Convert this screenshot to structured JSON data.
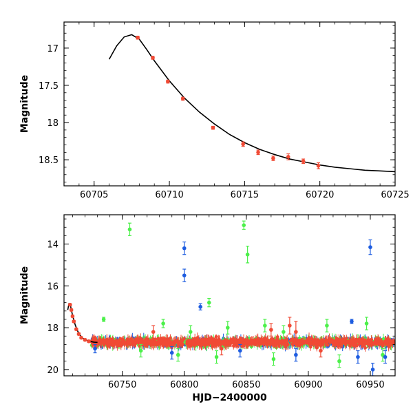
{
  "chart_data": [
    {
      "type": "scatter",
      "panel": "top",
      "xlabel": "",
      "ylabel": "Magnitude",
      "xlim": [
        60703,
        60725
      ],
      "ylim": [
        18.85,
        16.65
      ],
      "y_inverted": true,
      "xticks": [
        60705,
        60710,
        60715,
        60720,
        60725
      ],
      "xtick_labels": [
        "60705",
        "60710",
        "60715",
        "60720",
        "60725"
      ],
      "yticks": [
        17,
        17.5,
        18,
        18.5
      ],
      "ytick_labels": [
        "17",
        "17.5",
        "18",
        "18.5"
      ],
      "series": [
        {
          "name": "red",
          "color": "#f04a35",
          "points": [
            {
              "x": 60707.9,
              "y": 16.86,
              "err": 0.02
            },
            {
              "x": 60708.9,
              "y": 17.13,
              "err": 0.02
            },
            {
              "x": 60709.9,
              "y": 17.45,
              "err": 0.02
            },
            {
              "x": 60710.9,
              "y": 17.68,
              "err": 0.02
            },
            {
              "x": 60712.9,
              "y": 18.07,
              "err": 0.02
            },
            {
              "x": 60714.9,
              "y": 18.29,
              "err": 0.03
            },
            {
              "x": 60715.9,
              "y": 18.4,
              "err": 0.03
            },
            {
              "x": 60716.9,
              "y": 18.48,
              "err": 0.03
            },
            {
              "x": 60717.9,
              "y": 18.46,
              "err": 0.04
            },
            {
              "x": 60718.9,
              "y": 18.52,
              "err": 0.03
            },
            {
              "x": 60719.9,
              "y": 18.58,
              "err": 0.04
            }
          ]
        }
      ],
      "model_curve": {
        "color": "#000000",
        "x": [
          60706.0,
          60706.5,
          60707.0,
          60707.5,
          60708.0,
          60708.5,
          60709.0,
          60710.0,
          60711.0,
          60712.0,
          60713.0,
          60714.0,
          60715.0,
          60716.0,
          60717.0,
          60718.0,
          60719.0,
          60720.0,
          60721.0,
          60722.0,
          60723.0,
          60724.0,
          60725.0
        ],
        "y": [
          17.15,
          16.97,
          16.85,
          16.82,
          16.88,
          17.02,
          17.17,
          17.44,
          17.67,
          17.86,
          18.02,
          18.16,
          18.27,
          18.36,
          18.43,
          18.49,
          18.53,
          18.57,
          18.6,
          18.62,
          18.64,
          18.65,
          18.66
        ]
      }
    },
    {
      "type": "scatter",
      "panel": "bottom",
      "xlabel": "HJD−2400000",
      "ylabel": "Magnitude",
      "xlim": [
        60703,
        60970
      ],
      "ylim": [
        20.3,
        12.6
      ],
      "y_inverted": true,
      "xticks": [
        60750,
        60800,
        60850,
        60900,
        60950
      ],
      "xtick_labels": [
        "60750",
        "60800",
        "60850",
        "60900",
        "60950"
      ],
      "yticks": [
        14,
        16,
        18,
        20
      ],
      "ytick_labels": [
        "14",
        "16",
        "18",
        "20"
      ],
      "dense_band": {
        "x_range": [
          60725,
          60970
        ],
        "y_center": 18.7,
        "y_spread": 0.3
      },
      "series": [
        {
          "name": "green",
          "color": "#4cf04a",
          "points": [
            {
              "x": 60756,
              "y": 13.3,
              "err": 0.3
            },
            {
              "x": 60735,
              "y": 17.6,
              "err": 0.1
            },
            {
              "x": 60783,
              "y": 17.8,
              "err": 0.2
            },
            {
              "x": 60820,
              "y": 16.8,
              "err": 0.2
            },
            {
              "x": 60848,
              "y": 13.1,
              "err": 0.2
            },
            {
              "x": 60851,
              "y": 14.5,
              "err": 0.4
            },
            {
              "x": 60805,
              "y": 18.2,
              "err": 0.3
            },
            {
              "x": 60835,
              "y": 18.0,
              "err": 0.3
            },
            {
              "x": 60865,
              "y": 17.9,
              "err": 0.3
            },
            {
              "x": 60880,
              "y": 18.2,
              "err": 0.3
            },
            {
              "x": 60915,
              "y": 17.9,
              "err": 0.3
            },
            {
              "x": 60947,
              "y": 17.8,
              "err": 0.3
            },
            {
              "x": 60765,
              "y": 19.1,
              "err": 0.3
            },
            {
              "x": 60795,
              "y": 19.3,
              "err": 0.3
            },
            {
              "x": 60826,
              "y": 19.4,
              "err": 0.3
            },
            {
              "x": 60872,
              "y": 19.5,
              "err": 0.3
            },
            {
              "x": 60925,
              "y": 19.6,
              "err": 0.3
            },
            {
              "x": 60960,
              "y": 19.3,
              "err": 0.3
            }
          ]
        },
        {
          "name": "blue",
          "color": "#1d5ce0",
          "points": [
            {
              "x": 60800,
              "y": 14.2,
              "err": 0.3
            },
            {
              "x": 60800,
              "y": 15.5,
              "err": 0.3
            },
            {
              "x": 60813,
              "y": 17.0,
              "err": 0.15
            },
            {
              "x": 60950,
              "y": 14.15,
              "err": 0.35
            },
            {
              "x": 60935,
              "y": 17.7,
              "err": 0.1
            },
            {
              "x": 60728,
              "y": 19.0,
              "err": 0.2
            },
            {
              "x": 60790,
              "y": 19.2,
              "err": 0.3
            },
            {
              "x": 60845,
              "y": 19.1,
              "err": 0.3
            },
            {
              "x": 60890,
              "y": 19.3,
              "err": 0.3
            },
            {
              "x": 60940,
              "y": 19.4,
              "err": 0.3
            },
            {
              "x": 60952,
              "y": 20.0,
              "err": 0.3
            },
            {
              "x": 60962,
              "y": 19.4,
              "err": 0.3
            }
          ]
        },
        {
          "name": "red",
          "color": "#f04a35",
          "points": [
            {
              "x": 60707.9,
              "y": 16.9,
              "err": 0.05
            },
            {
              "x": 60708.9,
              "y": 17.15,
              "err": 0.05
            },
            {
              "x": 60709.9,
              "y": 17.45,
              "err": 0.05
            },
            {
              "x": 60710.9,
              "y": 17.7,
              "err": 0.05
            },
            {
              "x": 60712.9,
              "y": 18.07,
              "err": 0.05
            },
            {
              "x": 60714.9,
              "y": 18.3,
              "err": 0.05
            },
            {
              "x": 60716.9,
              "y": 18.48,
              "err": 0.05
            },
            {
              "x": 60719.9,
              "y": 18.58,
              "err": 0.05
            },
            {
              "x": 60723.0,
              "y": 18.65,
              "err": 0.05
            },
            {
              "x": 60885,
              "y": 17.9,
              "err": 0.4
            },
            {
              "x": 60890,
              "y": 18.2,
              "err": 0.5
            },
            {
              "x": 60870,
              "y": 18.1,
              "err": 0.3
            },
            {
              "x": 60775,
              "y": 18.2,
              "err": 0.3
            },
            {
              "x": 60830,
              "y": 19.0,
              "err": 0.3
            },
            {
              "x": 60910,
              "y": 19.1,
              "err": 0.3
            }
          ]
        }
      ],
      "model_curve": {
        "color": "#000000",
        "x": [
          60706.0,
          60707.0,
          60708.0,
          60709.0,
          60710.0,
          60712.0,
          60714.0,
          60716.0,
          60718.0,
          60720.0,
          60723.0,
          60727.0,
          60730.0
        ],
        "y": [
          17.15,
          16.85,
          16.88,
          17.17,
          17.44,
          17.86,
          18.16,
          18.36,
          18.49,
          18.57,
          18.64,
          18.69,
          18.7
        ]
      }
    }
  ]
}
